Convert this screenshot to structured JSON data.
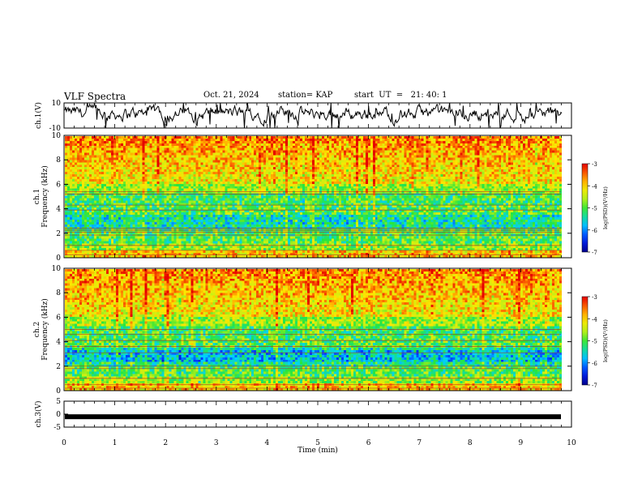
{
  "header": {
    "title": "VLF Spectra",
    "date": "Oct. 21, 2024",
    "station": "station= KAP",
    "start_ut": "start  UT  =   21: 40: 1"
  },
  "chart_data": [
    {
      "type": "line",
      "id": "ch1-timeseries",
      "ylabel": "ch.1(V)",
      "ylim": [
        -10,
        10
      ],
      "ytick_labels": [
        "10",
        "-10"
      ],
      "xlim": [
        0,
        10
      ],
      "series": [
        {
          "color": "#000000"
        }
      ]
    },
    {
      "type": "heatmap",
      "id": "ch1-spectrogram",
      "ylabel": "ch.1\nFrequency (kHz)",
      "ylim": [
        0,
        10
      ],
      "ytick_labels": [
        "0",
        "2",
        "4",
        "6",
        "8",
        "10"
      ],
      "xlim": [
        0,
        10
      ],
      "colorbar": {
        "label": "log(PSD)(V²/Hz)",
        "range": [
          -7,
          -3
        ],
        "tick_labels": [
          "-3",
          "-4",
          "-5",
          "-6",
          "-7"
        ]
      }
    },
    {
      "type": "heatmap",
      "id": "ch2-spectrogram",
      "ylabel": "ch.2\nFrequency (kHz)",
      "ylim": [
        0,
        10
      ],
      "ytick_labels": [
        "0",
        "2",
        "4",
        "6",
        "8",
        "10"
      ],
      "xlim": [
        0,
        10
      ],
      "colorbar": {
        "label": "log(PSD)(V²/Hz)",
        "range": [
          -7,
          -3
        ],
        "tick_labels": [
          "-3",
          "-4",
          "-5",
          "-6",
          "-7"
        ]
      }
    },
    {
      "type": "line",
      "id": "ch3-timeseries",
      "ylabel": "ch.3(V)",
      "ylim": [
        -5,
        5
      ],
      "ytick_labels": [
        "5",
        "0",
        "-5"
      ],
      "xlim": [
        0,
        10
      ],
      "xlabel": "Time (min)",
      "xtick_labels": [
        "0",
        "1",
        "2",
        "3",
        "4",
        "5",
        "6",
        "7",
        "8",
        "9",
        "10"
      ],
      "series": [
        {
          "color": "#000000",
          "values": [
            -1,
            -1
          ]
        }
      ]
    }
  ]
}
